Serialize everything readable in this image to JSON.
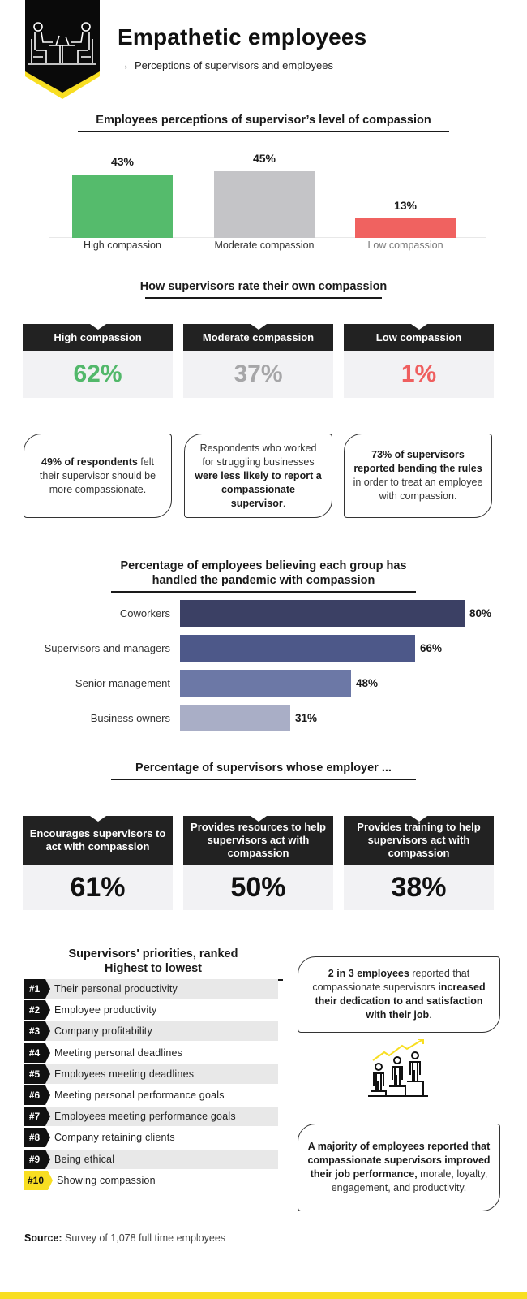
{
  "header": {
    "title": "Empathetic employees",
    "subtitle_arrow": "→",
    "subtitle": "Perceptions of supervisors and employees",
    "badge_icon": "meeting-people-icon",
    "colors": {
      "badge": "#0a0a0a",
      "accent": "#f8de22"
    }
  },
  "section1": {
    "title": "Employees perceptions of supervisor’s level of compassion"
  },
  "section2": {
    "title": "How supervisors rate their own compassion",
    "cards": [
      {
        "label": "High compassion",
        "value": "62%",
        "color": "#52b86a"
      },
      {
        "label": "Moderate compassion",
        "value": "37%",
        "color": "#a6a6a8"
      },
      {
        "label": "Low compassion",
        "value": "1%",
        "color": "#ef5f5f"
      }
    ]
  },
  "quotes": [
    {
      "bold1": "49% of respondents",
      "text1": " felt their supervisor should be more compassionate."
    },
    {
      "text1": "Respondents who worked for struggling businesses ",
      "bold1": "were less likely to report a compassionate supervisor",
      "text2": "."
    },
    {
      "bold1": "73% of supervisors reported bending the rules",
      "text1": " in order to treat an employee with compassion."
    }
  ],
  "section3": {
    "title_line1": "Percentage of employees believing each group has",
    "title_line2": "handled the pandemic with compassion"
  },
  "section4": {
    "title": "Percentage of supervisors whose employer ...",
    "cards": [
      {
        "label": "Encourages supervisors to act with compassion",
        "value": "61%"
      },
      {
        "label": "Provides resources to help supervisors act with compassion",
        "value": "50%"
      },
      {
        "label": "Provides training to help supervisors act with compassion",
        "value": "38%"
      }
    ]
  },
  "section5": {
    "title_line1": "Supervisors' priorities, ranked",
    "title_line2": "Highest to lowest",
    "items": [
      {
        "rank": "#1",
        "label": "Their personal productivity"
      },
      {
        "rank": "#2",
        "label": "Employee productivity"
      },
      {
        "rank": "#3",
        "label": "Company profitability"
      },
      {
        "rank": "#4",
        "label": "Meeting personal deadlines"
      },
      {
        "rank": "#5",
        "label": "Employees meeting deadlines"
      },
      {
        "rank": "#6",
        "label": "Meeting personal performance goals"
      },
      {
        "rank": "#7",
        "label": "Employees meeting performance goals"
      },
      {
        "rank": "#8",
        "label": "Company retaining clients"
      },
      {
        "rank": "#9",
        "label": "Being ethical"
      },
      {
        "rank": "#10",
        "label": "Showing compassion"
      }
    ]
  },
  "side_quotes": [
    {
      "bold1": "2 in 3 employees",
      "text1": " reported that compassionate supervisors ",
      "bold2": "increased their dedication to and satisfaction with their job",
      "text2": "."
    },
    {
      "bold1": "A majority of employees reported that compassionate supervisors improved their job performance,",
      "text1": " morale, loyalty, engagement, and productivity."
    }
  ],
  "growth_icon": "people-growth-icon",
  "source": {
    "label": "Source:",
    "text": " Survey of 1,078 full time employees"
  },
  "chart_data": [
    {
      "type": "bar",
      "title": "Employees perceptions of supervisor’s level of compassion",
      "categories": [
        "High compassion",
        "Moderate compassion",
        "Low compassion"
      ],
      "values": [
        43,
        45,
        13
      ],
      "value_labels": [
        "43%",
        "45%",
        "13%"
      ],
      "colors": [
        "#55bb6c",
        "#c4c4c7",
        "#f06260"
      ],
      "xlabel": "",
      "ylabel": "",
      "ylim": [
        0,
        50
      ],
      "grid": false,
      "legend": "none"
    },
    {
      "type": "table",
      "title": "How supervisors rate their own compassion",
      "categories": [
        "High compassion",
        "Moderate compassion",
        "Low compassion"
      ],
      "values": [
        62,
        37,
        1
      ]
    },
    {
      "type": "bar",
      "orientation": "horizontal",
      "title": "Percentage of employees believing each group has handled the pandemic with compassion",
      "categories": [
        "Coworkers",
        "Supervisors and managers",
        "Senior management",
        "Business owners"
      ],
      "values": [
        80,
        66,
        48,
        31
      ],
      "value_labels": [
        "80%",
        "66%",
        "48%",
        "31%"
      ],
      "colors": [
        "#3b4064",
        "#4d5889",
        "#6c78a6",
        "#a9aec6"
      ],
      "xlabel": "",
      "ylabel": "",
      "xlim": [
        0,
        80
      ],
      "grid": false,
      "legend": "none"
    },
    {
      "type": "table",
      "title": "Percentage of supervisors whose employer ...",
      "categories": [
        "Encourages supervisors to act with compassion",
        "Provides resources to help supervisors act with compassion",
        "Provides training to help supervisors act with compassion"
      ],
      "values": [
        61,
        50,
        38
      ]
    },
    {
      "type": "table",
      "title": "Supervisors' priorities, ranked Highest to lowest",
      "categories": [
        "Their personal productivity",
        "Employee productivity",
        "Company profitability",
        "Meeting personal deadlines",
        "Employees meeting deadlines",
        "Meeting personal performance goals",
        "Employees meeting performance goals",
        "Company retaining clients",
        "Being ethical",
        "Showing compassion"
      ],
      "values": [
        1,
        2,
        3,
        4,
        5,
        6,
        7,
        8,
        9,
        10
      ]
    }
  ]
}
